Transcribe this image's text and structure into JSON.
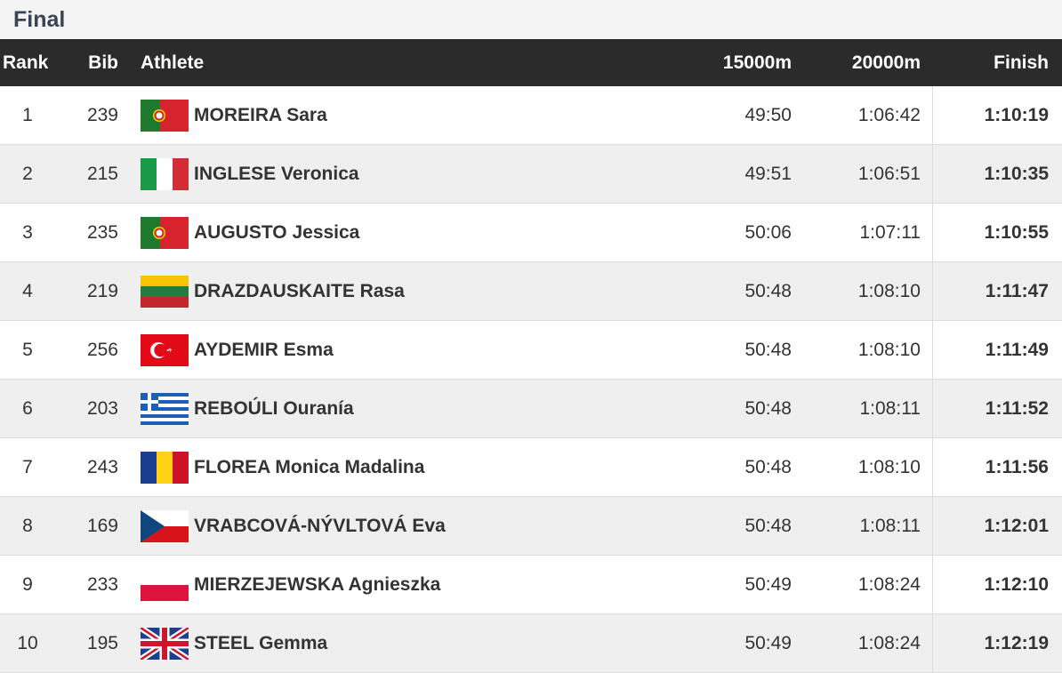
{
  "title": "Final",
  "table": {
    "columns": [
      "Rank",
      "Bib",
      "Athlete",
      "15000m",
      "20000m",
      "Finish"
    ],
    "rows": [
      [
        1,
        239,
        "MOREIRA Sara",
        "49:50",
        "1:06:42",
        "1:10:19"
      ],
      [
        2,
        215,
        "INGLESE Veronica",
        "49:51",
        "1:06:51",
        "1:10:35"
      ],
      [
        3,
        235,
        "AUGUSTO Jessica",
        "50:06",
        "1:07:11",
        "1:10:55"
      ],
      [
        4,
        219,
        "DRAZDAUSKAITE Rasa",
        "50:48",
        "1:08:10",
        "1:11:47"
      ],
      [
        5,
        256,
        "AYDEMIR Esma",
        "50:48",
        "1:08:10",
        "1:11:49"
      ],
      [
        6,
        203,
        "REBOÚLI Ouranía",
        "50:48",
        "1:08:11",
        "1:11:52"
      ],
      [
        7,
        243,
        "FLOREA Monica Madalina",
        "50:48",
        "1:08:10",
        "1:11:56"
      ],
      [
        8,
        169,
        "VRABCOVÁ-NÝVLTOVÁ Eva",
        "50:48",
        "1:08:11",
        "1:12:01"
      ],
      [
        9,
        233,
        "MIERZEJEWSKA Agnieszka",
        "50:49",
        "1:08:24",
        "1:12:10"
      ],
      [
        10,
        195,
        "STEEL Gemma",
        "50:49",
        "1:08:24",
        "1:12:19"
      ]
    ]
  }
}
